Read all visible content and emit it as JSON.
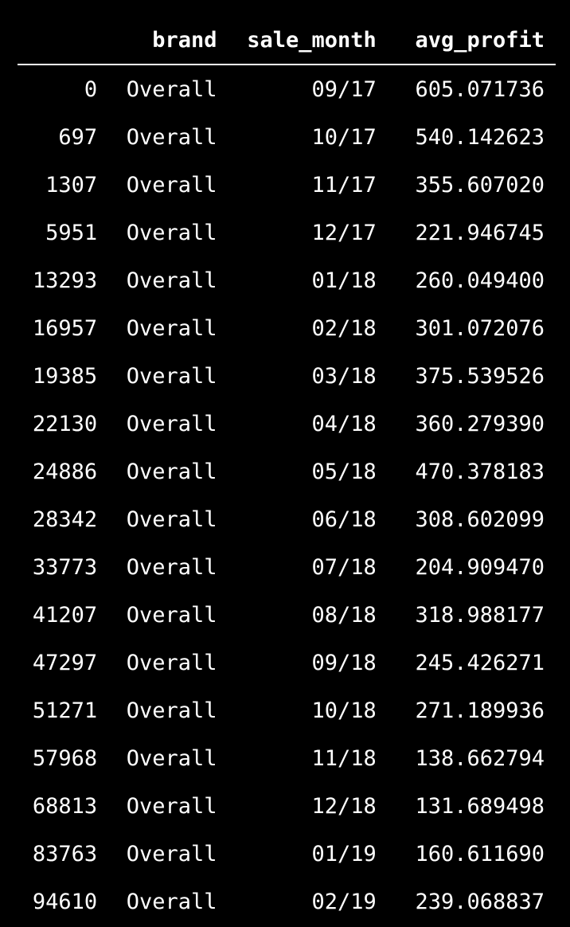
{
  "table": {
    "columns": [
      "",
      "brand",
      "sale_month",
      "avg_profit"
    ],
    "rows": [
      {
        "index": "0",
        "brand": "Overall",
        "sale_month": "09/17",
        "avg_profit": "605.071736"
      },
      {
        "index": "697",
        "brand": "Overall",
        "sale_month": "10/17",
        "avg_profit": "540.142623"
      },
      {
        "index": "1307",
        "brand": "Overall",
        "sale_month": "11/17",
        "avg_profit": "355.607020"
      },
      {
        "index": "5951",
        "brand": "Overall",
        "sale_month": "12/17",
        "avg_profit": "221.946745"
      },
      {
        "index": "13293",
        "brand": "Overall",
        "sale_month": "01/18",
        "avg_profit": "260.049400"
      },
      {
        "index": "16957",
        "brand": "Overall",
        "sale_month": "02/18",
        "avg_profit": "301.072076"
      },
      {
        "index": "19385",
        "brand": "Overall",
        "sale_month": "03/18",
        "avg_profit": "375.539526"
      },
      {
        "index": "22130",
        "brand": "Overall",
        "sale_month": "04/18",
        "avg_profit": "360.279390"
      },
      {
        "index": "24886",
        "brand": "Overall",
        "sale_month": "05/18",
        "avg_profit": "470.378183"
      },
      {
        "index": "28342",
        "brand": "Overall",
        "sale_month": "06/18",
        "avg_profit": "308.602099"
      },
      {
        "index": "33773",
        "brand": "Overall",
        "sale_month": "07/18",
        "avg_profit": "204.909470"
      },
      {
        "index": "41207",
        "brand": "Overall",
        "sale_month": "08/18",
        "avg_profit": "318.988177"
      },
      {
        "index": "47297",
        "brand": "Overall",
        "sale_month": "09/18",
        "avg_profit": "245.426271"
      },
      {
        "index": "51271",
        "brand": "Overall",
        "sale_month": "10/18",
        "avg_profit": "271.189936"
      },
      {
        "index": "57968",
        "brand": "Overall",
        "sale_month": "11/18",
        "avg_profit": "138.662794"
      },
      {
        "index": "68813",
        "brand": "Overall",
        "sale_month": "12/18",
        "avg_profit": "131.689498"
      },
      {
        "index": "83763",
        "brand": "Overall",
        "sale_month": "01/19",
        "avg_profit": "160.611690"
      },
      {
        "index": "94610",
        "brand": "Overall",
        "sale_month": "02/19",
        "avg_profit": "239.068837"
      }
    ]
  },
  "colors": {
    "background": "#000000",
    "text": "#ffffff"
  }
}
